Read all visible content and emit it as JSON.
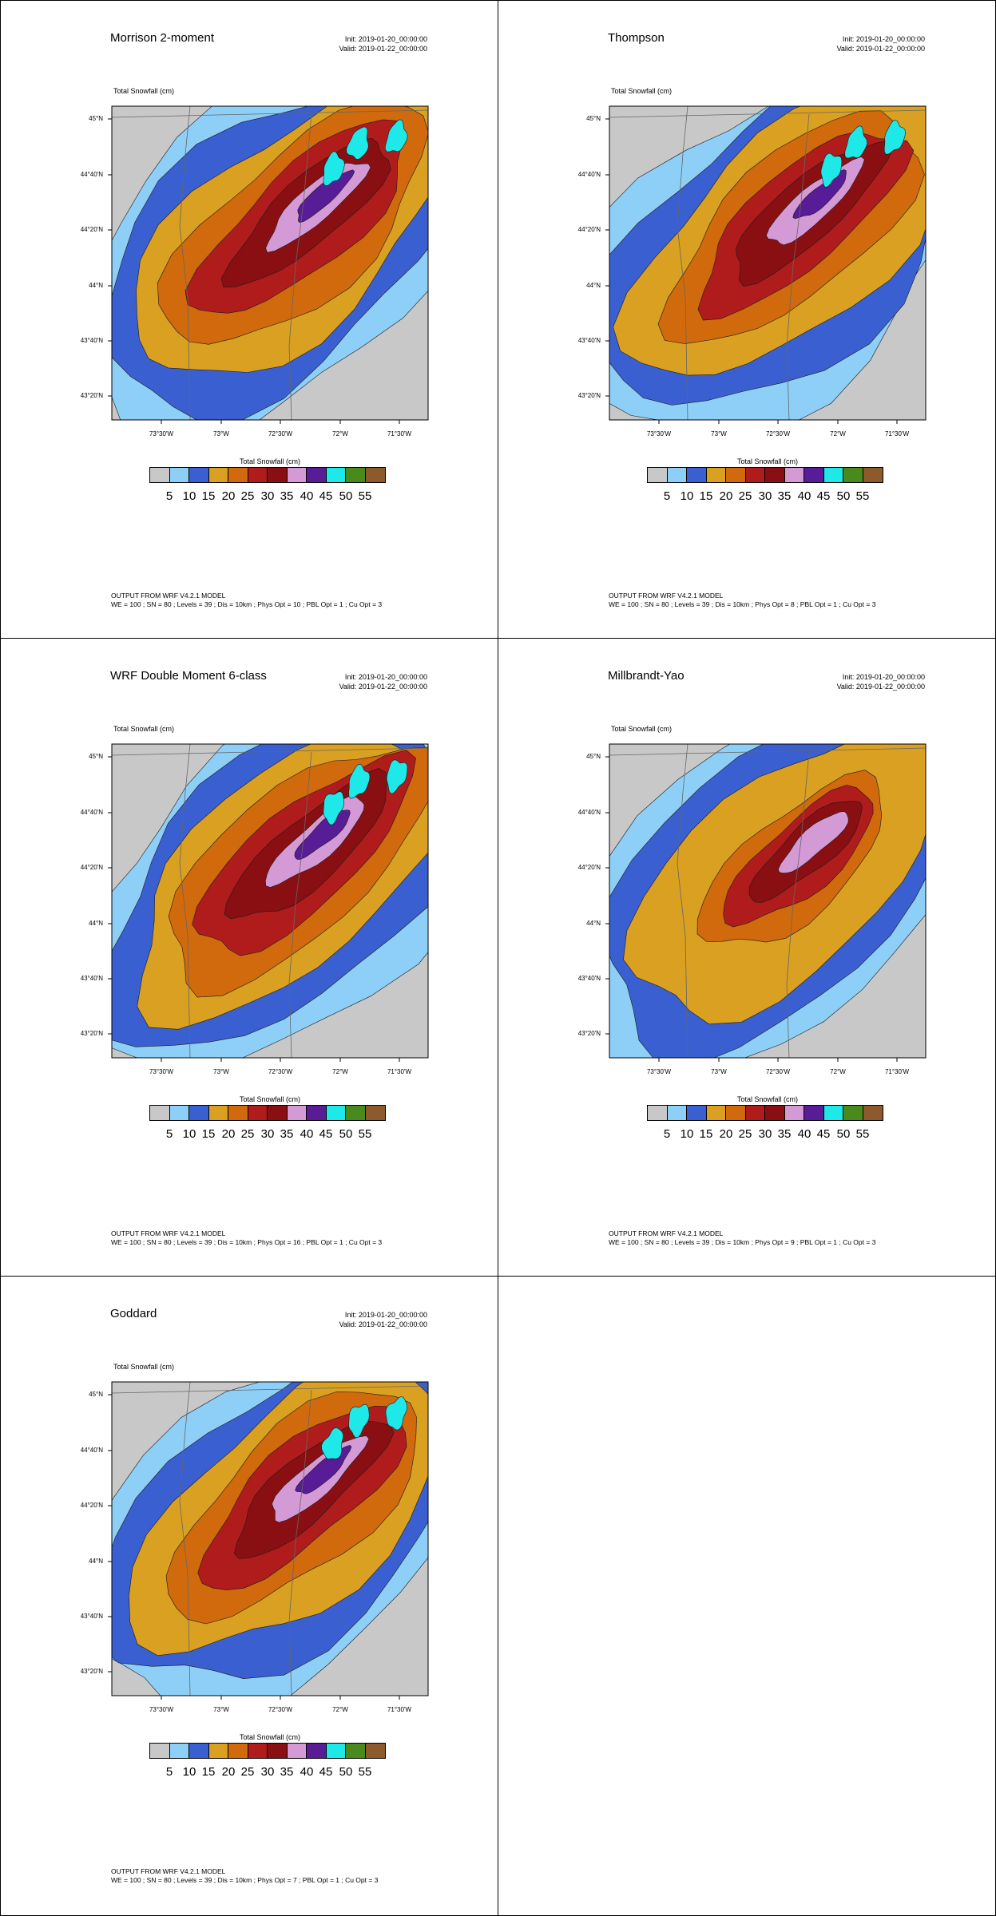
{
  "field_label": "Total Snowfall   (cm)",
  "colorbar_title": "Total Snowfall  (cm)",
  "init": "Init: 2019-01-20_00:00:00",
  "valid": "Valid: 2019-01-22_00:00:00",
  "footer_line1": "OUTPUT FROM WRF V4.2.1 MODEL",
  "lat_labels": [
    "45°N",
    "44°40'N",
    "44°20'N",
    "44°N",
    "43°40'N",
    "43°20'N"
  ],
  "lon_labels": [
    "73°30'W",
    "73°W",
    "72°30'W",
    "72°W",
    "71°30'W"
  ],
  "colorbar": {
    "ticks": [
      "5",
      "10",
      "15",
      "20",
      "25",
      "30",
      "35",
      "40",
      "45",
      "50",
      "55"
    ],
    "colors": [
      "#c8c8c8",
      "#8ecff7",
      "#3a5fd0",
      "#d9a021",
      "#d06a0c",
      "#b01c1c",
      "#8a0f12",
      "#d49ad6",
      "#581c96",
      "#1ee8e8",
      "#4a8a1c",
      "#8c5a2c"
    ]
  },
  "panels": [
    {
      "title": "Morrison 2-moment",
      "footer_line2": "WE = 100 ; SN = 80 ; Levels = 39 ; Dis = 10km ; Phys Opt = 10 ; PBL Opt = 1 ; Cu Opt = 3"
    },
    {
      "title": "Thompson",
      "footer_line2": "WE = 100 ; SN = 80 ; Levels = 39 ; Dis = 10km ; Phys Opt = 8 ; PBL Opt = 1 ; Cu Opt = 3"
    },
    {
      "title": "WRF Double Moment 6-class",
      "footer_line2": "WE = 100 ; SN = 80 ; Levels = 39 ; Dis = 10km ; Phys Opt = 16 ; PBL Opt = 1 ; Cu Opt = 3"
    },
    {
      "title": "Millbrandt-Yao",
      "footer_line2": "WE = 100 ; SN = 80 ; Levels = 39 ; Dis = 10km ; Phys Opt = 9 ; PBL Opt = 1 ; Cu Opt = 3"
    },
    {
      "title": "Goddard",
      "footer_line2": "WE = 100 ; SN = 80 ; Levels = 39 ; Dis = 10km ; Phys Opt = 7 ; PBL Opt = 1 ; Cu Opt = 3"
    }
  ]
}
